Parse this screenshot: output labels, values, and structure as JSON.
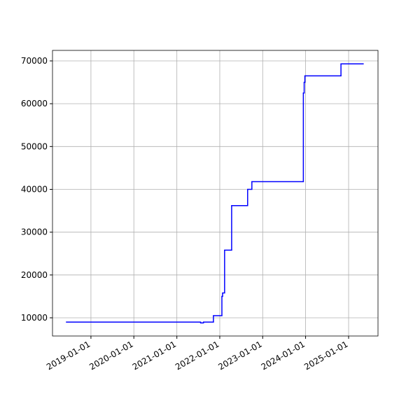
{
  "chart_data": {
    "type": "line",
    "step": "post",
    "color": "#0000ff",
    "grid": true,
    "x": [
      "2018-06-07",
      "2021-07-22",
      "2021-08-15",
      "2021-11-08",
      "2022-01-19",
      "2022-01-25",
      "2022-02-11",
      "2022-04-12",
      "2022-08-26",
      "2022-10-01",
      "2023-12-13",
      "2023-12-20",
      "2023-12-26",
      "2024-10-28",
      "2025-05-05"
    ],
    "values": [
      9000,
      8800,
      9000,
      10500,
      15000,
      15800,
      25800,
      36200,
      40000,
      41800,
      62500,
      65000,
      66500,
      69300,
      69300
    ],
    "xlim": [
      "2018-02-08",
      "2025-09-08"
    ],
    "xticks": [
      "2019-01-01",
      "2020-01-01",
      "2021-01-01",
      "2022-01-01",
      "2023-01-01",
      "2024-01-01",
      "2025-01-01"
    ],
    "ylim": [
      5750,
      72450
    ],
    "yticks": [
      10000,
      20000,
      30000,
      40000,
      50000,
      60000,
      70000
    ]
  }
}
